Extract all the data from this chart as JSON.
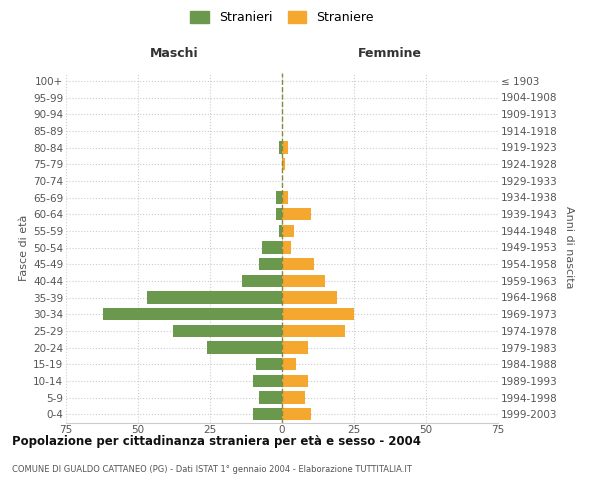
{
  "age_groups": [
    "0-4",
    "5-9",
    "10-14",
    "15-19",
    "20-24",
    "25-29",
    "30-34",
    "35-39",
    "40-44",
    "45-49",
    "50-54",
    "55-59",
    "60-64",
    "65-69",
    "70-74",
    "75-79",
    "80-84",
    "85-89",
    "90-94",
    "95-99",
    "100+"
  ],
  "birth_years": [
    "1999-2003",
    "1994-1998",
    "1989-1993",
    "1984-1988",
    "1979-1983",
    "1974-1978",
    "1969-1973",
    "1964-1968",
    "1959-1963",
    "1954-1958",
    "1949-1953",
    "1944-1948",
    "1939-1943",
    "1934-1938",
    "1929-1933",
    "1924-1928",
    "1919-1923",
    "1914-1918",
    "1909-1913",
    "1904-1908",
    "≤ 1903"
  ],
  "males": [
    -10,
    -8,
    -10,
    -9,
    -26,
    -38,
    -62,
    -47,
    -14,
    -8,
    -7,
    -1,
    -2,
    -2,
    0,
    0,
    -1,
    0,
    0,
    0,
    0
  ],
  "females": [
    10,
    8,
    9,
    5,
    9,
    22,
    25,
    19,
    15,
    11,
    3,
    4,
    10,
    2,
    0,
    1,
    2,
    0,
    0,
    0,
    0
  ],
  "male_color": "#6a994e",
  "female_color": "#f4a830",
  "male_label": "Stranieri",
  "female_label": "Straniere",
  "title": "Popolazione per cittadinanza straniera per età e sesso - 2004",
  "subtitle": "COMUNE DI GUALDO CATTANEO (PG) - Dati ISTAT 1° gennaio 2004 - Elaborazione TUTTITALIA.IT",
  "ylabel_left": "Fasce di età",
  "ylabel_right": "Anni di nascita",
  "header_left": "Maschi",
  "header_right": "Femmine",
  "xlim": [
    -75,
    75
  ],
  "xticks": [
    -75,
    -50,
    -25,
    0,
    25,
    50,
    75
  ],
  "xticklabels": [
    "75",
    "50",
    "25",
    "0",
    "25",
    "50",
    "75"
  ],
  "grid_color": "#cccccc",
  "background_color": "#ffffff",
  "bar_height": 0.75,
  "dashed_line_color": "#888840",
  "title_fontsize": 8.5,
  "subtitle_fontsize": 6.0,
  "tick_fontsize": 7.5,
  "header_fontsize": 9,
  "legend_fontsize": 9
}
